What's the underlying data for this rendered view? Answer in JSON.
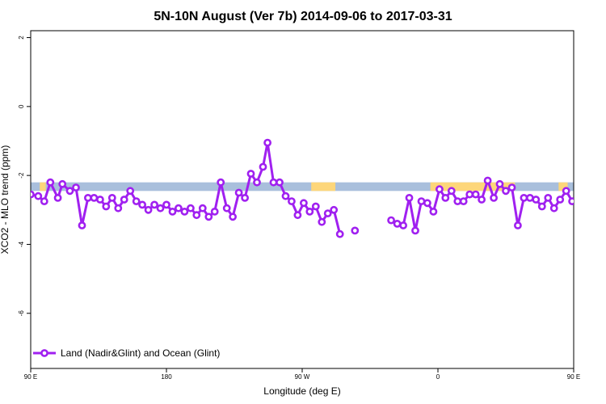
{
  "chart_data": {
    "type": "line",
    "title": "5N-10N August (Ver 7b)   2014-09-06 to 2017-03-31",
    "xlabel": "Longitude (deg E)",
    "ylabel": "XCO2 - MLO trend (ppm)",
    "xlim": [
      90,
      450
    ],
    "ylim": [
      -7.6,
      2.2
    ],
    "x_ticks": [
      {
        "value": 90,
        "label": "90 E"
      },
      {
        "value": 180,
        "label": "180"
      },
      {
        "value": 270,
        "label": "90 W"
      },
      {
        "value": 360,
        "label": "0"
      },
      {
        "value": 450,
        "label": "90 E"
      },
      {
        "value": 540,
        "label": "180"
      }
    ],
    "y_ticks": [
      {
        "value": 2,
        "label": "2"
      },
      {
        "value": 0,
        "label": "0"
      },
      {
        "value": -2,
        "label": "-2"
      },
      {
        "value": -4,
        "label": "-4"
      },
      {
        "value": -6,
        "label": "-6"
      }
    ],
    "grid": false,
    "legend_position": "bottom-left",
    "colors": {
      "series": "#a020f0",
      "ocean_band": "#a9bfdc",
      "land_band": "#fdd67a"
    },
    "band": {
      "y_range": [
        -2.45,
        -2.2
      ],
      "land_segments": [
        [
          96,
          100
        ],
        [
          276,
          292
        ],
        [
          355,
          411
        ],
        [
          440,
          446
        ],
        [
          462,
          466
        ],
        [
          508,
          518
        ]
      ]
    },
    "series": [
      {
        "name": "Land (Nadir&Glint) and Ocean (Glint)",
        "segments": [
          [
            [
              90,
              -2.55
            ],
            [
              95,
              -2.6
            ],
            [
              99,
              -2.75
            ],
            [
              103,
              -2.2
            ],
            [
              108,
              -2.65
            ],
            [
              111,
              -2.25
            ],
            [
              116,
              -2.45
            ],
            [
              120,
              -2.35
            ],
            [
              124,
              -3.45
            ],
            [
              128,
              -2.65
            ],
            [
              132,
              -2.65
            ],
            [
              136,
              -2.7
            ],
            [
              140,
              -2.9
            ],
            [
              144,
              -2.65
            ],
            [
              148,
              -2.95
            ],
            [
              152,
              -2.7
            ],
            [
              156,
              -2.45
            ],
            [
              160,
              -2.75
            ],
            [
              164,
              -2.85
            ],
            [
              168,
              -3.0
            ],
            [
              172,
              -2.85
            ],
            [
              176,
              -2.95
            ],
            [
              180,
              -2.85
            ],
            [
              184,
              -3.05
            ],
            [
              188,
              -2.95
            ],
            [
              192,
              -3.05
            ],
            [
              196,
              -2.95
            ],
            [
              200,
              -3.15
            ],
            [
              204,
              -2.95
            ],
            [
              208,
              -3.2
            ],
            [
              212,
              -3.05
            ],
            [
              216,
              -2.2
            ],
            [
              220,
              -2.95
            ],
            [
              224,
              -3.2
            ],
            [
              228,
              -2.5
            ],
            [
              232,
              -2.65
            ],
            [
              236,
              -1.95
            ],
            [
              240,
              -2.2
            ],
            [
              244,
              -1.75
            ],
            [
              247,
              -1.05
            ],
            [
              251,
              -2.2
            ],
            [
              255,
              -2.2
            ],
            [
              259,
              -2.6
            ],
            [
              263,
              -2.75
            ],
            [
              267,
              -3.15
            ],
            [
              271,
              -2.8
            ],
            [
              275,
              -3.05
            ],
            [
              279,
              -2.9
            ],
            [
              283,
              -3.35
            ],
            [
              287,
              -3.1
            ],
            [
              291,
              -3.0
            ],
            [
              295,
              -3.7
            ]
          ],
          [
            [
              305,
              -3.6
            ]
          ],
          [
            [
              329,
              -3.3
            ],
            [
              333,
              -3.4
            ],
            [
              337,
              -3.45
            ],
            [
              341,
              -2.65
            ],
            [
              345,
              -3.6
            ],
            [
              349,
              -2.75
            ],
            [
              353,
              -2.8
            ],
            [
              357,
              -3.05
            ],
            [
              361,
              -2.4
            ],
            [
              365,
              -2.65
            ],
            [
              369,
              -2.45
            ],
            [
              373,
              -2.75
            ],
            [
              377,
              -2.75
            ],
            [
              381,
              -2.55
            ],
            [
              385,
              -2.55
            ],
            [
              389,
              -2.7
            ],
            [
              393,
              -2.15
            ],
            [
              397,
              -2.65
            ],
            [
              401,
              -2.25
            ],
            [
              405,
              -2.45
            ],
            [
              409,
              -2.35
            ],
            [
              413,
              -3.45
            ],
            [
              417,
              -2.65
            ],
            [
              421,
              -2.65
            ],
            [
              425,
              -2.7
            ],
            [
              429,
              -2.9
            ],
            [
              433,
              -2.65
            ],
            [
              437,
              -2.95
            ],
            [
              441,
              -2.7
            ],
            [
              445,
              -2.45
            ],
            [
              449,
              -2.75
            ]
          ]
        ]
      }
    ]
  }
}
